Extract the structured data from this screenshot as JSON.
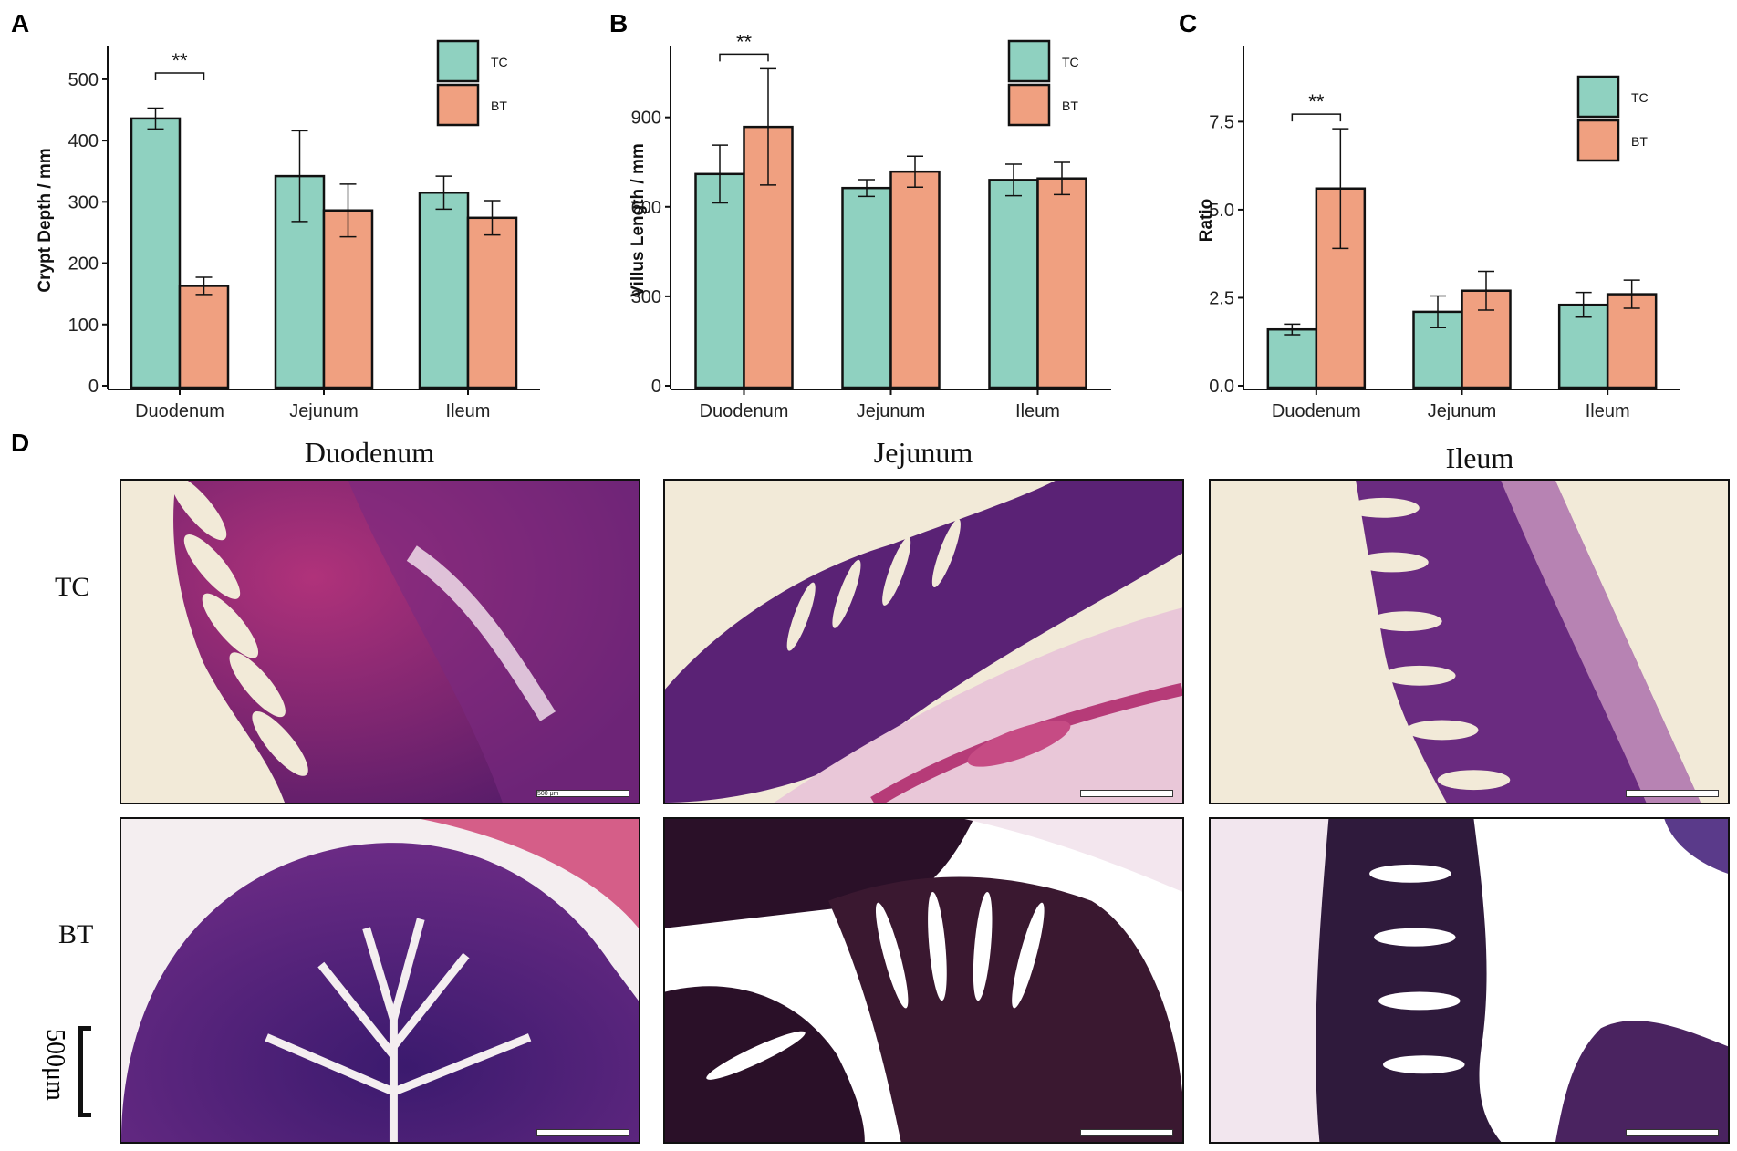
{
  "panels": {
    "A": "A",
    "B": "B",
    "C": "C",
    "D": "D"
  },
  "colors": {
    "TC": "#8fd1c0",
    "BT": "#f0a080",
    "axis": "#111111"
  },
  "chart_data": [
    {
      "id": "A",
      "type": "bar",
      "ylabel": "Crypt Depth / mm",
      "categories": [
        "Duodenum",
        "Jejunum",
        "Ileum"
      ],
      "ylim": [
        0,
        540
      ],
      "yticks": [
        0,
        100,
        200,
        300,
        400,
        500
      ],
      "ytick_labels": [
        "0",
        "100",
        "200",
        "300",
        "400",
        "500"
      ],
      "legend": [
        "TC",
        "BT"
      ],
      "legend_position": "top-right",
      "series": [
        {
          "name": "TC",
          "values": [
            436,
            342,
            315
          ],
          "err": [
            17,
            74,
            27
          ]
        },
        {
          "name": "BT",
          "values": [
            163,
            286,
            274
          ],
          "err": [
            14,
            43,
            28
          ]
        }
      ],
      "significance": {
        "category": "Duodenum",
        "label": "**"
      }
    },
    {
      "id": "B",
      "type": "bar",
      "ylabel": "Villus Length / mm",
      "categories": [
        "Duodenum",
        "Jejunum",
        "Ileum"
      ],
      "ylim": [
        0,
        1110
      ],
      "yticks": [
        0,
        300,
        600,
        900
      ],
      "ytick_labels": [
        "0",
        "300",
        "600",
        "900"
      ],
      "legend": [
        "TC",
        "BT"
      ],
      "legend_position": "top-right",
      "series": [
        {
          "name": "TC",
          "values": [
            710,
            663,
            690
          ],
          "err": [
            97,
            28,
            53
          ]
        },
        {
          "name": "BT",
          "values": [
            868,
            718,
            695
          ],
          "err": [
            195,
            52,
            54
          ]
        }
      ],
      "significance": {
        "category": "Duodenum",
        "label": "**"
      }
    },
    {
      "id": "C",
      "type": "bar",
      "ylabel": "Ratio",
      "categories": [
        "Duodenum",
        "Jejunum",
        "Ileum"
      ],
      "ylim": [
        0,
        9.4
      ],
      "yticks": [
        0,
        2.5,
        5,
        7.5
      ],
      "ytick_labels": [
        "0.0",
        "2.5",
        "5.0",
        "7.5"
      ],
      "legend": [
        "TC",
        "BT"
      ],
      "legend_position": "top-right",
      "series": [
        {
          "name": "TC",
          "values": [
            1.6,
            2.1,
            2.3
          ],
          "err": [
            0.15,
            0.45,
            0.35
          ]
        },
        {
          "name": "BT",
          "values": [
            5.6,
            2.7,
            2.6
          ],
          "err": [
            1.7,
            0.55,
            0.4
          ]
        }
      ],
      "significance": {
        "category": "Duodenum",
        "label": "**"
      }
    }
  ],
  "histology": {
    "columns": [
      "Duodenum",
      "Jejunum",
      "Ileum"
    ],
    "rows": [
      "TC",
      "BT"
    ],
    "inset_scale": "500 μm",
    "scale_label": "500μm"
  }
}
